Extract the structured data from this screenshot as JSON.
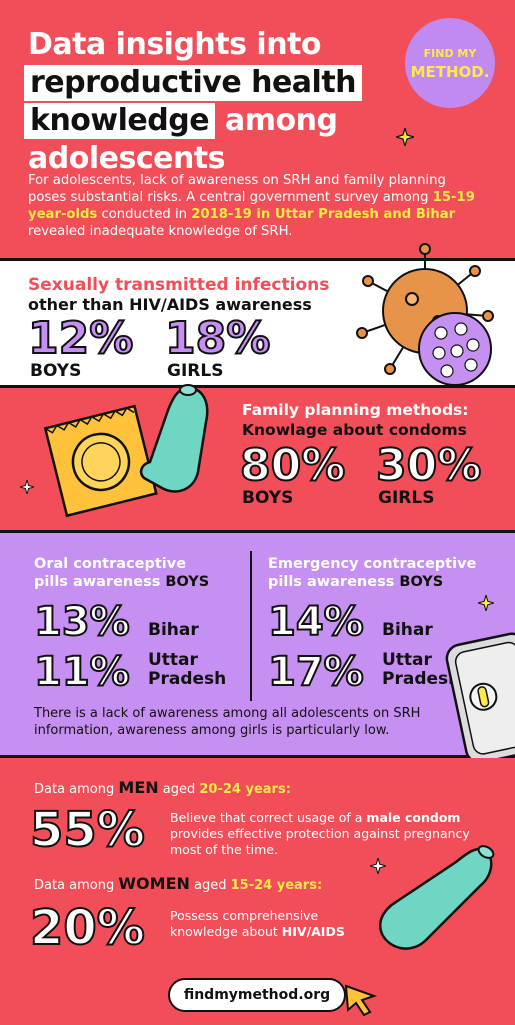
{
  "header": {
    "title_line1": "Data insights into",
    "title_line2": "reproductive health",
    "title_line3a": "knowledge",
    "title_line3b": "among",
    "title_line4": "adolescents",
    "logo_line1": "FIND MY",
    "logo_line2": "METHOD.",
    "intro_p1": "For adolescents, lack of awareness on SRH and family planning poses substantial risks. A central government survey among ",
    "intro_hl1": "15-19 year-olds",
    "intro_p2": " conducted in ",
    "intro_hl2": "2018-19 in Uttar Pradesh and Bihar",
    "intro_p3": " revealed inadequate knowledge of SRH."
  },
  "sti": {
    "title_red": "Sexually transmitted infections",
    "title_black": "other than HIV/AIDS awareness",
    "boys_pct": "12%",
    "boys_label": "BOYS",
    "girls_pct": "18%",
    "girls_label": "GIRLS"
  },
  "condoms": {
    "title": "Family planning methods:",
    "subtitle": "Knowlage about condoms",
    "boys_pct": "80%",
    "boys_label": "BOYS",
    "girls_pct": "30%",
    "girls_label": "GIRLS"
  },
  "pills": {
    "oral_h1": "Oral contraceptive",
    "oral_h2a": "pills awareness ",
    "oral_h2b": "BOYS",
    "oral_bihar_pct": "13%",
    "oral_up_pct": "11%",
    "emerg_h1": "Emergency contraceptive",
    "emerg_h2a": "pills awareness ",
    "emerg_h2b": "BOYS",
    "emerg_bihar_pct": "14%",
    "emerg_up_pct": "17%",
    "bihar": "Bihar",
    "uttar": "Uttar",
    "pradesh": "Pradesh",
    "note": "There is a lack of awareness among all adolescents on SRH information, awareness among girls is particularly low."
  },
  "adults": {
    "men_pre": "Data among ",
    "men_word": "MEN",
    "men_mid": " aged ",
    "men_age": "20-24 years:",
    "men_pct": "55%",
    "men_desc_a": "Believe that correct usage of a ",
    "men_desc_b": "male condom",
    "men_desc_c": " provides effective protection against pregnancy most of the time.",
    "women_pre": "Data among ",
    "women_word": "WOMEN",
    "women_mid": " aged ",
    "women_age": "15-24 years:",
    "women_pct": "20%",
    "women_desc_a": "Possess comprehensive knowledge about ",
    "women_desc_b": "HIV/AIDS"
  },
  "footer": {
    "url": "findmymethod.org"
  },
  "colors": {
    "red": "#f24e59",
    "purple": "#c68ff2",
    "yellow": "#ffe84a",
    "teal": "#6fd6c4",
    "orange": "#e8934a"
  }
}
